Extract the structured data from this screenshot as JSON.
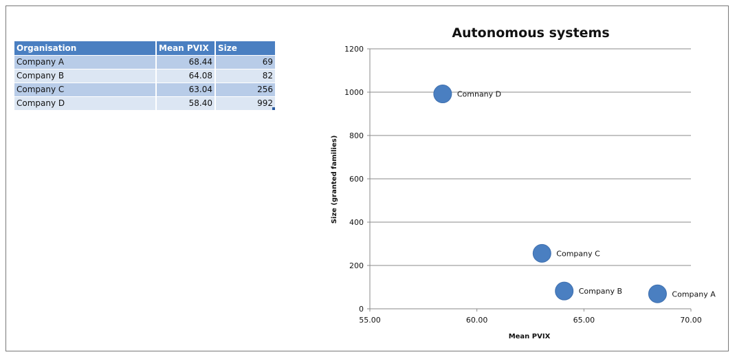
{
  "table": {
    "headers": [
      "Organisation",
      "Mean PVIX",
      "Size"
    ],
    "rows": [
      [
        "Company A",
        "68.44",
        "69"
      ],
      [
        "Company B",
        "64.08",
        "82"
      ],
      [
        "Company C",
        "63.04",
        "256"
      ],
      [
        "Company D",
        "58.40",
        "992"
      ]
    ]
  },
  "chart_data": {
    "type": "scatter",
    "title": "Autonomous systems",
    "xlabel": "Mean PVIX",
    "ylabel": "Size (granted families)",
    "xlim": [
      55,
      70
    ],
    "ylim": [
      0,
      1200
    ],
    "x_ticks": [
      "55.00",
      "60.00",
      "65.00",
      "70.00"
    ],
    "y_ticks": [
      "0",
      "200",
      "400",
      "600",
      "800",
      "1000",
      "1200"
    ],
    "grid": true,
    "legend": "none",
    "marker_color": "#4a7fc1",
    "points": [
      {
        "label": "Company A",
        "x": 68.44,
        "y": 69
      },
      {
        "label": "Company B",
        "x": 64.08,
        "y": 82
      },
      {
        "label": "Company C",
        "x": 63.04,
        "y": 256
      },
      {
        "label": "Comnany D",
        "x": 58.4,
        "y": 992
      }
    ]
  }
}
